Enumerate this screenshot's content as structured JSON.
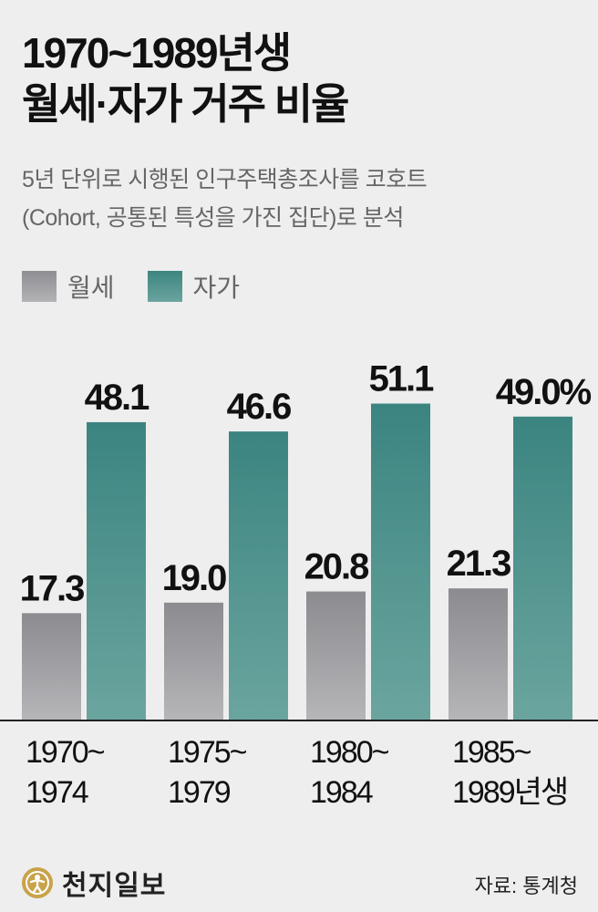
{
  "header": {
    "title_line1": "1970~1989년생",
    "title_line2": "월세·자가 거주 비율",
    "subtitle_line1": "5년 단위로 시행된 인구주택총조사를 코호트",
    "subtitle_line2": "(Cohort, 공통된 특성을 가진 집단)로 분석"
  },
  "legend": {
    "monthly_rent": "월세",
    "home_owned": "자가"
  },
  "chart_data": {
    "type": "bar",
    "categories": [
      "1970~\n1974",
      "1975~\n1979",
      "1980~\n1984",
      "1985~\n1989년생"
    ],
    "series": [
      {
        "name": "월세",
        "values": [
          17.3,
          19.0,
          20.8,
          21.3
        ],
        "labels": [
          "17.3",
          "19.0",
          "20.8",
          "21.3"
        ],
        "color": "#9d9da1"
      },
      {
        "name": "자가",
        "values": [
          48.1,
          46.6,
          51.1,
          49.0
        ],
        "labels": [
          "48.1",
          "46.6",
          "51.1",
          "49.0%"
        ],
        "color": "#4a8c87"
      }
    ],
    "ylim": [
      0,
      60
    ],
    "grid": false,
    "legend_position": "top-left"
  },
  "footer": {
    "logo_text": "천지일보",
    "source": "자료: 통계청"
  },
  "colors": {
    "background": "#eeeeee",
    "monthly_rent": "#9d9da1",
    "home_owned": "#4a8c87"
  }
}
